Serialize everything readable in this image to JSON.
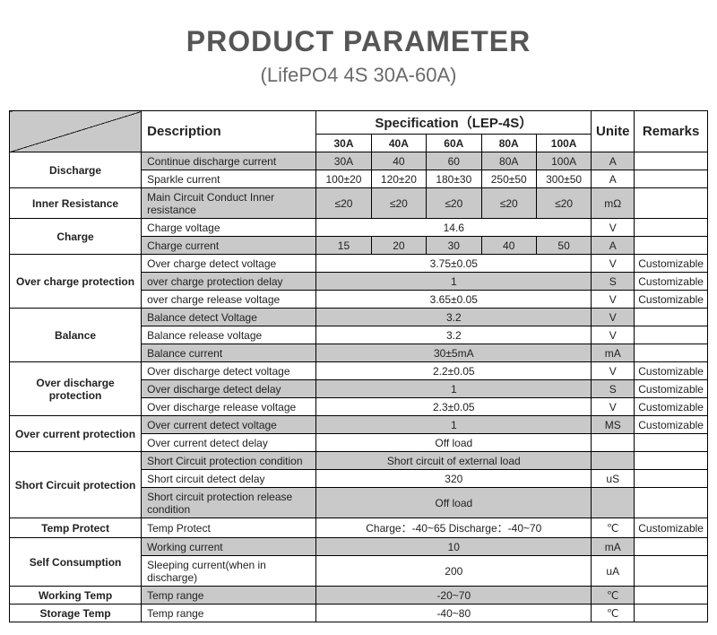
{
  "title": "PRODUCT PARAMETER",
  "subtitle": "(LifePO4 4S  30A-60A)",
  "header": {
    "description": "Description",
    "specification": "Specification（LEP-4S）",
    "unite": "Unite",
    "remarks": "Remarks",
    "cols": [
      "30A",
      "40A",
      "60A",
      "80A",
      "100A"
    ]
  },
  "categories": {
    "discharge": "Discharge",
    "inner_resistance": "Inner Resistance",
    "charge": "Charge",
    "over_charge": "Over charge protection",
    "balance": "Balance",
    "over_discharge": "Over discharge protection",
    "over_current": "Over current protection",
    "short_circuit": "Short Circuit protection",
    "temp_protect": "Temp Protect",
    "self_consumption": "Self Consumption",
    "working_temp": "Working Temp",
    "storage_temp": "Storage Temp"
  },
  "rows": {
    "r1": {
      "desc": "Continue discharge current",
      "v": [
        "30A",
        "40",
        "60",
        "80A",
        "100A"
      ],
      "unit": "A",
      "rem": ""
    },
    "r2": {
      "desc": "Sparkle current",
      "v": [
        "100±20",
        "120±20",
        "180±30",
        "250±50",
        "300±50"
      ],
      "unit": "A",
      "rem": ""
    },
    "r3": {
      "desc": "Main Circuit Conduct Inner resistance",
      "v": [
        "≤20",
        "≤20",
        "≤20",
        "≤20",
        "≤20"
      ],
      "unit": "mΩ",
      "rem": ""
    },
    "r4": {
      "desc": "Charge voltage",
      "span": "14.6",
      "unit": "V",
      "rem": ""
    },
    "r5": {
      "desc": "Charge current",
      "v": [
        "15",
        "20",
        "30",
        "40",
        "50"
      ],
      "unit": "A",
      "rem": ""
    },
    "r6": {
      "desc": "Over charge detect voltage",
      "span": "3.75±0.05",
      "unit": "V",
      "rem": "Customizable"
    },
    "r7": {
      "desc": "over charge protection delay",
      "span": "1",
      "unit": "S",
      "rem": "Customizable"
    },
    "r8": {
      "desc": "over charge release voltage",
      "span": "3.65±0.05",
      "unit": "V",
      "rem": "Customizable"
    },
    "r9": {
      "desc": "Balance detect Voltage",
      "span": "3.2",
      "unit": "V",
      "rem": ""
    },
    "r10": {
      "desc": "Balance release voltage",
      "span": "3.2",
      "unit": "V",
      "rem": ""
    },
    "r11": {
      "desc": "Balance current",
      "span": "30±5mA",
      "unit": "mA",
      "rem": ""
    },
    "r12": {
      "desc": "Over discharge detect voltage",
      "span": "2.2±0.05",
      "unit": "V",
      "rem": "Customizable"
    },
    "r13": {
      "desc": "Over discharge detect delay",
      "span": "1",
      "unit": "S",
      "rem": "Customizable"
    },
    "r14": {
      "desc": "Over discharge release voltage",
      "span": "2.3±0.05",
      "unit": "V",
      "rem": "Customizable"
    },
    "r15": {
      "desc": "Over current detect voltage",
      "span": "1",
      "unit": "MS",
      "rem": "Customizable"
    },
    "r16": {
      "desc": "Over current detect delay",
      "span": "Off load",
      "unit": "",
      "rem": ""
    },
    "r17": {
      "desc": "Short Circuit protection condition",
      "span": "Short circuit of external load",
      "unit": "",
      "rem": ""
    },
    "r18": {
      "desc": "Short circuit detect delay",
      "span": "320",
      "unit": "uS",
      "rem": ""
    },
    "r19": {
      "desc": "Short circuit protection release condition",
      "span": "Off load",
      "unit": "",
      "rem": ""
    },
    "r20": {
      "desc": "Temp Protect",
      "span": "Charge：-40~65   Discharge：-40~70",
      "unit": "℃",
      "rem": "Customizable"
    },
    "r21": {
      "desc": "Working current",
      "span": "10",
      "unit": "mA",
      "rem": ""
    },
    "r22": {
      "desc": "Sleeping current(when  in discharge)",
      "span": "200",
      "unit": "uA",
      "rem": ""
    },
    "r23": {
      "desc": "Temp range",
      "span": "-20~70",
      "unit": "℃",
      "rem": ""
    },
    "r24": {
      "desc": "Temp range",
      "span": "-40~80",
      "unit": "℃",
      "rem": ""
    }
  },
  "style": {
    "gray_bg": "#c9c9c9",
    "border_color": "#000000",
    "title_color": "#565656",
    "subtitle_color": "#6a6a6a",
    "font_size_body": 12,
    "font_size_title": 32,
    "font_size_subtitle": 22
  }
}
